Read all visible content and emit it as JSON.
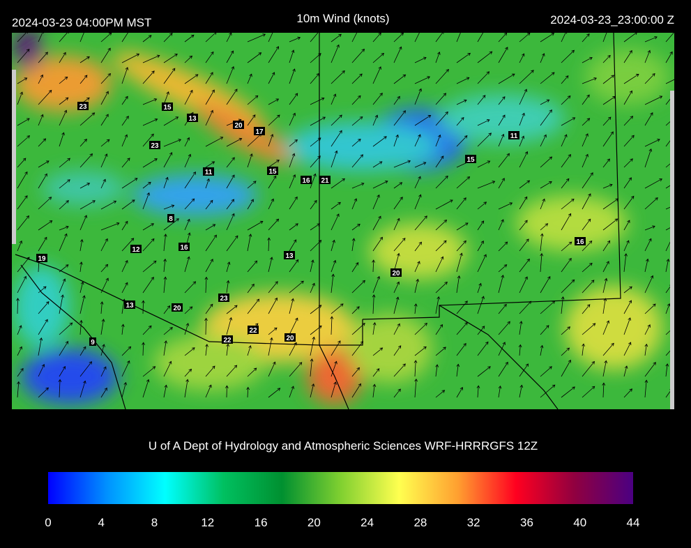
{
  "header": {
    "valid_local": "2024-03-23 04:00PM MST",
    "title": "10m Wind (knots)",
    "valid_utc": "2024-03-23_23:00:00 Z"
  },
  "station_labels": [
    23,
    15,
    13,
    20,
    17,
    23,
    11,
    15,
    11,
    15,
    16,
    21,
    8,
    12,
    16,
    16,
    19,
    13,
    20,
    13,
    20,
    23,
    22,
    20,
    22,
    9
  ],
  "credit": "U of A Dept of Hydrology and Atmospheric Sciences WRF-HRRRGFS 12Z",
  "colorbar": {
    "lim": [
      0,
      44
    ],
    "ticks": [
      0,
      4,
      8,
      12,
      16,
      20,
      24,
      28,
      32,
      36,
      40,
      44
    ],
    "colors": [
      "#0000ff",
      "#0090ff",
      "#00ffff",
      "#00c060",
      "#009030",
      "#80d030",
      "#ffff50",
      "#ffa030",
      "#ff0020",
      "#900040",
      "#4b0082"
    ]
  }
}
